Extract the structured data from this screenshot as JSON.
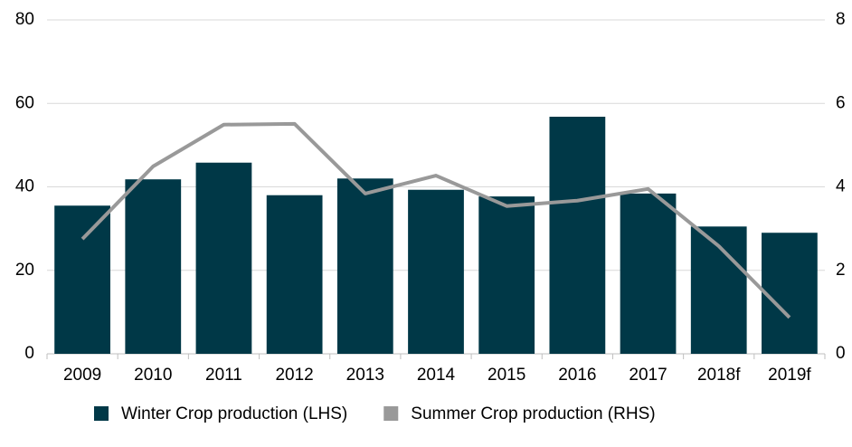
{
  "chart_data": {
    "type": "bar_line",
    "categories": [
      "2009",
      "2010",
      "2011",
      "2012",
      "2013",
      "2014",
      "2015",
      "2016",
      "2017",
      "2018f",
      "2019f"
    ],
    "series": [
      {
        "name": "Winter Crop production (LHS)",
        "color": "#003847",
        "type": "bar",
        "axis": "y",
        "values": [
          35.5,
          41.8,
          45.8,
          38,
          42,
          39.3,
          37.7,
          56.8,
          38.4,
          30.5,
          29
        ]
      },
      {
        "name": "Summer Crop production (RHS)",
        "color": "#999999",
        "type": "line",
        "axis": "y2",
        "values": [
          2.75,
          4.49,
          5.49,
          5.51,
          3.84,
          4.27,
          3.54,
          3.67,
          3.95,
          2.58,
          0.87
        ]
      }
    ],
    "ylim": [
      0,
      80
    ],
    "yticks": [
      0,
      20,
      40,
      60,
      80
    ],
    "y2lim": [
      0,
      8
    ],
    "y2ticks": [
      0,
      2,
      4,
      6,
      8
    ],
    "grid": true,
    "legend": "bottom"
  }
}
